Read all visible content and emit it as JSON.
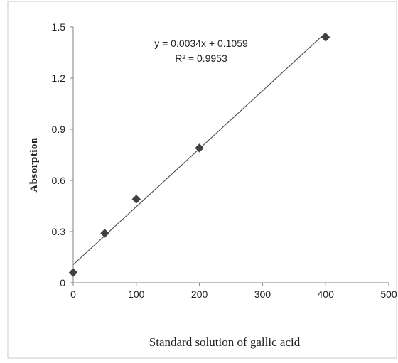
{
  "chart_data": {
    "type": "scatter",
    "title": "",
    "xlabel": "Standard solution of gallic acid",
    "ylabel": "Absorption",
    "xlim": [
      0,
      500
    ],
    "ylim": [
      0,
      1.5
    ],
    "x_ticks": [
      "0",
      "100",
      "200",
      "300",
      "400",
      "500"
    ],
    "y_ticks": [
      "0",
      "0.3",
      "0.6",
      "0.9",
      "1.2",
      "1.5"
    ],
    "grid": false,
    "legend": "none",
    "series": [
      {
        "points": [
          {
            "x": 0,
            "y": 0.06
          },
          {
            "x": 50,
            "y": 0.29
          },
          {
            "x": 100,
            "y": 0.49
          },
          {
            "x": 200,
            "y": 0.79
          },
          {
            "x": 400,
            "y": 1.44
          }
        ],
        "marker": "diamond",
        "color": "#404040"
      }
    ],
    "trendline": {
      "slope": 0.0034,
      "intercept": 0.1059,
      "x_range": [
        0,
        400
      ],
      "color": "#555555"
    },
    "annotations": {
      "equation": "y = 0.0034x + 0.1059",
      "r_squared": "R² = 0.9953"
    }
  }
}
